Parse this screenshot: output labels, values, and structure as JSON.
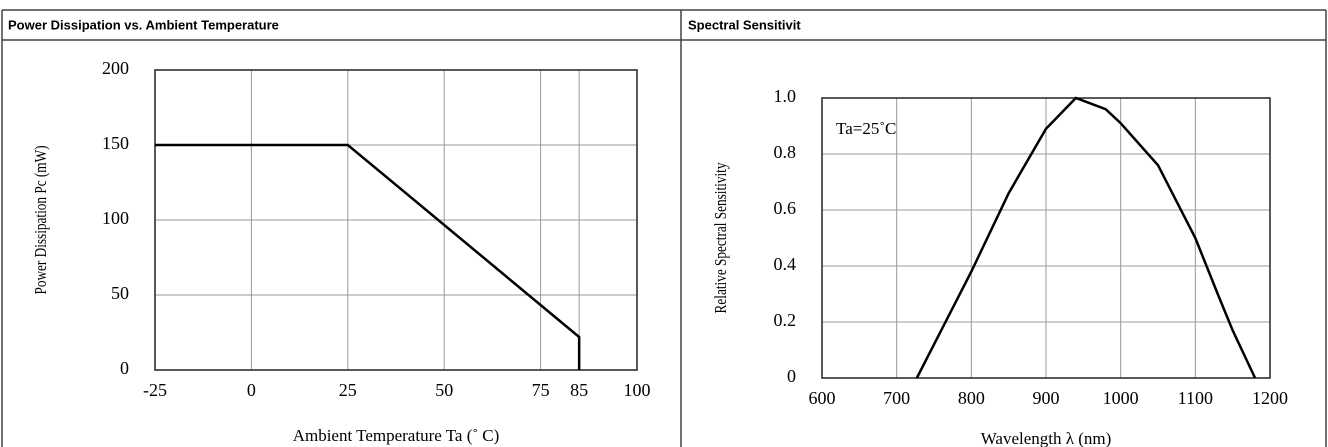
{
  "chart_data": [
    {
      "type": "line",
      "title": "Power Dissipation vs. Ambient Temperature",
      "x_label": "Ambient Temperature Ta (˚ C)",
      "y_label": "Power Dissipation Pc (mW)",
      "x": [
        -25,
        25,
        85,
        85
      ],
      "values": [
        150,
        150,
        22,
        0
      ],
      "color": "#000000",
      "xlim": [
        -25,
        100
      ],
      "xticks": [
        -25,
        0,
        25,
        50,
        75,
        85,
        100
      ],
      "ylim": [
        0,
        200
      ],
      "yticks": [
        0,
        50,
        100,
        150,
        200
      ],
      "grid": true
    },
    {
      "type": "line",
      "title": "Spectral Sensitivit",
      "x_label": "Wavelength λ (nm)",
      "y_label": "Relative Spectral Sensitivity",
      "annotation": "Ta=25˚C",
      "x": [
        727,
        750,
        800,
        850,
        900,
        940,
        980,
        1000,
        1050,
        1100,
        1130,
        1150,
        1180
      ],
      "values": [
        0,
        0.12,
        0.38,
        0.66,
        0.89,
        1.0,
        0.96,
        0.91,
        0.76,
        0.5,
        0.3,
        0.17,
        0
      ],
      "color": "#000000",
      "xlim": [
        600,
        1200
      ],
      "xticks": [
        600,
        700,
        800,
        900,
        1000,
        1100,
        1200
      ],
      "ylim": [
        0,
        1
      ],
      "yticks": [
        0,
        0.2,
        0.4,
        0.6,
        0.8,
        {
          "value": 1,
          "label": "1.0"
        }
      ],
      "grid": true
    }
  ]
}
